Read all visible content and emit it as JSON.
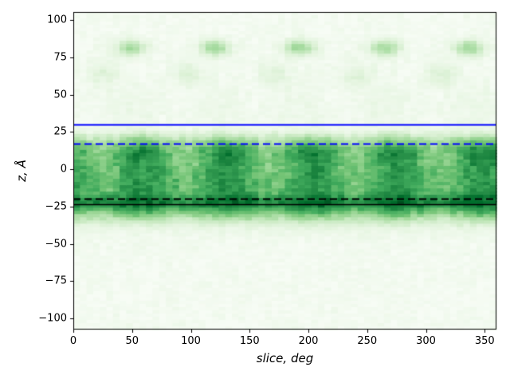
{
  "chart_data": {
    "type": "heatmap",
    "title": "",
    "xlabel": "slice, deg",
    "ylabel": "z, Å",
    "xlim": [
      0,
      360
    ],
    "zlim": [
      -107.5,
      105.5
    ],
    "xticks": [
      0,
      50,
      100,
      150,
      200,
      250,
      300,
      350
    ],
    "xtick_labels": [
      "0",
      "50",
      "100",
      "150",
      "200",
      "250",
      "300",
      "350"
    ],
    "yticks": [
      100,
      75,
      50,
      25,
      0,
      -25,
      -50,
      -75,
      -100
    ],
    "ytick_labels": [
      "100",
      "75",
      "50",
      "25",
      "0",
      "−25",
      "−50",
      "−75",
      "−100"
    ],
    "grid": false,
    "legend": "none",
    "colormap": {
      "name": "Greens",
      "stops": [
        [
          0.0,
          "#f7fcf5"
        ],
        [
          0.125,
          "#e5f5e0"
        ],
        [
          0.25,
          "#c7e9c0"
        ],
        [
          0.375,
          "#a1d99b"
        ],
        [
          0.5,
          "#74c476"
        ],
        [
          0.625,
          "#41ab5d"
        ],
        [
          0.75,
          "#238b45"
        ],
        [
          0.875,
          "#006d2c"
        ],
        [
          1.0,
          "#00441b"
        ]
      ]
    },
    "hlines": [
      {
        "z": 30,
        "color": "#0000ff",
        "style": "solid",
        "width": 2
      },
      {
        "z": 17,
        "color": "#0000ff",
        "style": "dashed",
        "width": 2
      },
      {
        "z": -19.5,
        "color": "#000000",
        "style": "dashed",
        "width": 2
      },
      {
        "z": -23.5,
        "color": "#000000",
        "style": "solid",
        "width": 1.6
      }
    ],
    "heatmap_model": {
      "nx": 64,
      "ny": 99,
      "background": 0.025,
      "noise": {
        "cell_amp": 0.045,
        "band_extra": 0.075
      },
      "periodicity_deg": 72,
      "components": {
        "band": {
          "z_center": -6,
          "half_width": 28,
          "power": 6,
          "amp": 0.56,
          "mod_amp": 0.12,
          "mod_max_deg": 59
        },
        "deep_band": {
          "z_center": -22.5,
          "z_sigma": 5.5,
          "amp": 0.24,
          "mod_amp": 0.05,
          "mod_max_deg": 20
        },
        "upper_rows": {
          "z_center": 11,
          "z_sigma": 6,
          "amp": 0.08,
          "mod_amp": 0.6,
          "mod_max_deg": 59
        },
        "mid_rows": {
          "z_center": -8,
          "z_sigma": 7,
          "amp": 0.05,
          "mod_amp": 0.6,
          "mod_max_deg": 23
        },
        "blobs": {
          "z_center": 81.5,
          "z_sigma": 5.5,
          "amp": 0.36,
          "centers_deg": [
            49,
            121,
            193,
            265,
            337
          ],
          "theta_sigma_deg": 13
        },
        "subblobs": {
          "z_center": 64,
          "z_sigma": 8,
          "amp": 0.12,
          "centers_deg": [
            26,
            98,
            170,
            242,
            314
          ],
          "theta_sigma_deg": 14
        },
        "upper_haze": {
          "z_center": 40,
          "z_sigma": 18,
          "amp": 0.055,
          "mod_amp": 0.4,
          "mod_max_deg": 49
        },
        "lower_haze": {
          "z_center": -38,
          "z_sigma": 9,
          "amp": 0.05
        }
      }
    }
  }
}
